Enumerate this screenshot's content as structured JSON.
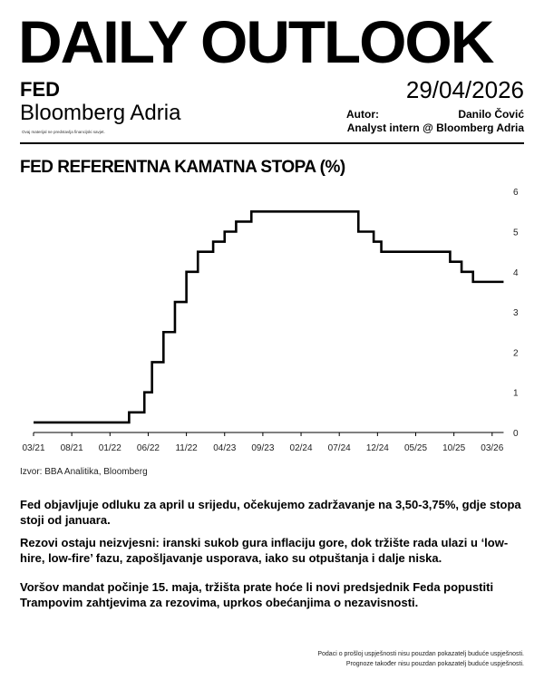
{
  "header": {
    "title": "DAILY OUTLOOK",
    "subject": "FED",
    "brand": "Bloomberg Adria",
    "disclaimer": "Ovaj materijal ne predstavlja financijski savjet.",
    "date": "29/04/2026",
    "author_label": "Autor:",
    "author_name": "Danilo Čović",
    "author_role": "Analyst intern @ Bloomberg Adria"
  },
  "chart_data": {
    "type": "line",
    "title": "FED REFERENTNA KAMATNA STOPA (%)",
    "xlabel": "",
    "ylabel": "",
    "x_unit": "months since 03/21",
    "x_ticks": [
      {
        "m": 0,
        "label": "03/21"
      },
      {
        "m": 5,
        "label": "08/21"
      },
      {
        "m": 10,
        "label": "01/22"
      },
      {
        "m": 15,
        "label": "06/22"
      },
      {
        "m": 20,
        "label": "11/22"
      },
      {
        "m": 25,
        "label": "04/23"
      },
      {
        "m": 30,
        "label": "09/23"
      },
      {
        "m": 35,
        "label": "02/24"
      },
      {
        "m": 40,
        "label": "07/24"
      },
      {
        "m": 45,
        "label": "12/24"
      },
      {
        "m": 50,
        "label": "05/25"
      },
      {
        "m": 55,
        "label": "10/25"
      },
      {
        "m": 60,
        "label": "03/26"
      }
    ],
    "y_ticks": [
      0,
      1,
      2,
      3,
      4,
      5,
      6
    ],
    "ylim": [
      0,
      6
    ],
    "xlim": [
      0,
      61.5
    ],
    "step_series": [
      {
        "m": 0,
        "v": 0.25
      },
      {
        "m": 12.5,
        "v": 0.5
      },
      {
        "m": 14.5,
        "v": 1.0
      },
      {
        "m": 15.5,
        "v": 1.75
      },
      {
        "m": 17,
        "v": 2.5
      },
      {
        "m": 18.5,
        "v": 3.25
      },
      {
        "m": 20,
        "v": 4.0
      },
      {
        "m": 21.5,
        "v": 4.5
      },
      {
        "m": 23.5,
        "v": 4.75
      },
      {
        "m": 25,
        "v": 5.0
      },
      {
        "m": 26.5,
        "v": 5.25
      },
      {
        "m": 28.5,
        "v": 5.5
      },
      {
        "m": 42.5,
        "v": 5.0
      },
      {
        "m": 44.5,
        "v": 4.75
      },
      {
        "m": 45.5,
        "v": 4.5
      },
      {
        "m": 54.5,
        "v": 4.25
      },
      {
        "m": 56,
        "v": 4.0
      },
      {
        "m": 57.5,
        "v": 3.75
      },
      {
        "m": 61.5,
        "v": 3.75
      }
    ],
    "source": "Izvor: BBA Analitika, Bloomberg"
  },
  "body": {
    "paragraphs": [
      "Fed objavljuje odluku za april u srijedu, očekujemo zadržavanje na 3,50-3,75%, gdje stopa stoji od januara.",
      "Rezovi ostaju neizvjesni: iranski sukob gura inflaciju gore, dok tržište rada ulazi u ‘low-hire, low-fire’ fazu, zapošljavanje usporava, iako su otpuštanja i dalje niska.",
      "Voršov mandat počinje 15. maja, tržišta prate hoće li novi predsjednik Feda popustiti Trampovim zahtjevima za rezovima, uprkos obećanjima o nezavisnosti."
    ]
  },
  "footer": {
    "lines": [
      "Podaci o prošloj uspješnosti nisu pouzdan pokazatelj buduće uspješnosti.",
      "Prognoze također nisu pouzdan pokazatelj buduće uspješnosti."
    ]
  }
}
